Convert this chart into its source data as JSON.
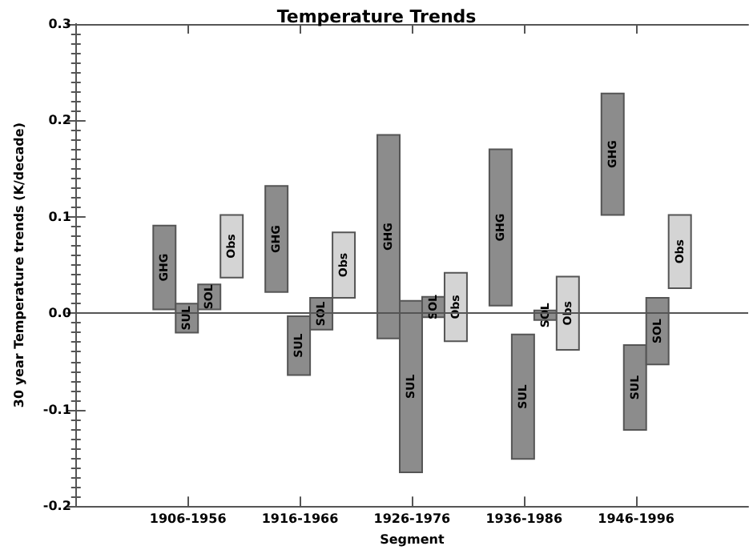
{
  "chart_data": {
    "type": "bar",
    "title": "Temperature Trends",
    "xlabel": "Segment",
    "ylabel": "30 year Temperature trends (K/decade)",
    "categories": [
      "1906-1956",
      "1916-1966",
      "1926-1976",
      "1936-1986",
      "1946-1996"
    ],
    "series": [
      {
        "name": "GHG",
        "color": "#8c8c8c",
        "base": [
          0.004,
          0.022,
          -0.026,
          0.008,
          0.102
        ],
        "values": [
          0.087,
          0.11,
          0.211,
          0.162,
          0.126
        ]
      },
      {
        "name": "SUL",
        "color": "#8c8c8c",
        "base": [
          -0.02,
          -0.064,
          -0.165,
          -0.151,
          -0.121
        ],
        "values": [
          0.03,
          0.061,
          0.178,
          0.129,
          0.088
        ]
      },
      {
        "name": "SOL",
        "color": "#8c8c8c",
        "base": [
          0.004,
          -0.017,
          -0.004,
          -0.007,
          -0.053
        ],
        "values": [
          0.026,
          0.033,
          0.021,
          0.01,
          0.069
        ]
      },
      {
        "name": "Obs",
        "color": "#d4d4d4",
        "base": [
          0.037,
          0.016,
          -0.029,
          -0.038,
          0.026
        ],
        "values": [
          0.065,
          0.068,
          0.071,
          0.076,
          0.076
        ]
      }
    ],
    "ylim": [
      -0.2,
      0.3
    ],
    "yticks": [
      -0.2,
      -0.1,
      {
        "value": 0,
        "label": "0.0"
      },
      0.1,
      0.2,
      0.3
    ],
    "ref_lines": [
      {
        "axis": "y",
        "value": 0,
        "color": "#555555"
      }
    ],
    "grid": false,
    "legend": false
  }
}
